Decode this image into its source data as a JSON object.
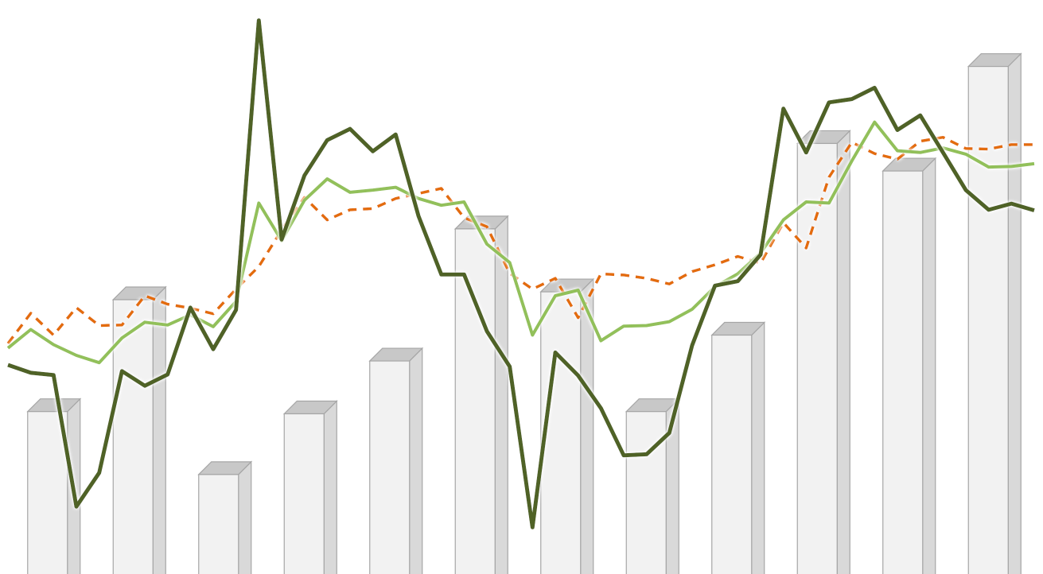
{
  "chart_data": {
    "type": "bar",
    "title": "",
    "xlabel": "",
    "ylabel": "",
    "ylim": [
      0,
      100
    ],
    "grid": false,
    "legend": "none",
    "bars": {
      "values": [
        28.9,
        48.8,
        17.7,
        28.5,
        37.9,
        61.4,
        50.2,
        28.9,
        42.5,
        76.6,
        71.7,
        90.3
      ],
      "face_color": "#f2f2f2",
      "side_color": "#d9d9d9",
      "top_color": "#c8c8c8",
      "edge_color": "#a6a6a6"
    },
    "series": [
      {
        "style": "solid",
        "color": "#4f6228",
        "values": [
          37.2,
          35.8,
          35.4,
          12.0,
          18.0,
          36.1,
          33.5,
          35.5,
          47.4,
          40.0,
          47.0,
          98.5,
          59.5,
          70.9,
          77.2,
          79.2,
          75.2,
          78.2,
          63.7,
          53.3,
          53.3,
          43.2,
          36.9,
          8.3,
          39.4,
          35.3,
          29.5,
          21.1,
          21.3,
          25.1,
          40.7,
          51.3,
          52.1,
          56.8,
          82.8,
          75.0,
          83.9,
          84.5,
          86.5,
          79.0,
          81.6,
          75.0,
          68.3,
          64.8,
          65.9,
          64.7
        ]
      },
      {
        "style": "solid",
        "color": "#92c05a",
        "values": [
          40.2,
          43.5,
          40.8,
          38.9,
          37.6,
          42.0,
          44.8,
          44.3,
          46.1,
          44.0,
          48.5,
          66.0,
          59.3,
          66.5,
          70.3,
          67.9,
          68.3,
          68.8,
          66.8,
          65.6,
          66.2,
          58.7,
          55.4,
          42.5,
          49.5,
          50.5,
          41.5,
          44.1,
          44.2,
          44.9,
          47.1,
          51.1,
          53.4,
          57.1,
          63.0,
          66.2,
          66.0,
          73.5,
          80.4,
          75.3,
          75.0,
          75.8,
          74.7,
          72.4,
          72.5,
          73.0
        ]
      },
      {
        "style": "dashed",
        "color": "#e36c0a",
        "values": [
          41.0,
          46.4,
          42.5,
          47.4,
          44.2,
          44.3,
          49.5,
          48.0,
          47.3,
          46.3,
          50.7,
          54.7,
          61.2,
          67.0,
          63.0,
          64.8,
          65.0,
          66.8,
          67.7,
          68.6,
          63.4,
          61.8,
          53.5,
          50.7,
          52.6,
          45.6,
          53.4,
          53.2,
          52.6,
          51.6,
          53.8,
          55.0,
          56.5,
          55.3,
          62.5,
          58.0,
          70.6,
          76.8,
          74.8,
          73.8,
          77.0,
          77.7,
          75.7,
          75.6,
          76.4,
          76.4
        ]
      }
    ]
  }
}
